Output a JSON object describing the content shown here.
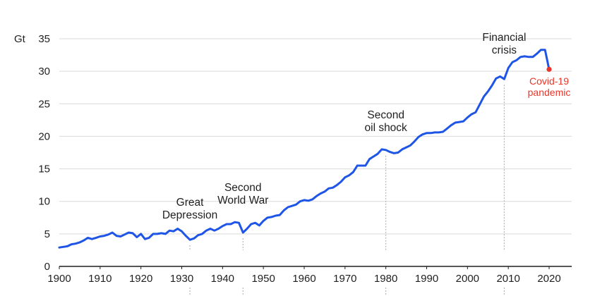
{
  "chart_data": {
    "type": "line",
    "unit": "Gt",
    "xlim": [
      1900,
      2020
    ],
    "ylim": [
      0,
      35
    ],
    "x_ticks": [
      1900,
      1910,
      1920,
      1930,
      1940,
      1950,
      1960,
      1970,
      1980,
      1990,
      2000,
      2010,
      2020
    ],
    "y_ticks": [
      0,
      5,
      10,
      15,
      20,
      25,
      30,
      35
    ],
    "grid": "horizontal",
    "line_color": "#1f55e6",
    "highlight_color": "#e8362a",
    "series": [
      {
        "x": [
          1900,
          1901,
          1902,
          1903,
          1904,
          1905,
          1906,
          1907,
          1908,
          1909,
          1910,
          1911,
          1912,
          1913,
          1914,
          1915,
          1916,
          1917,
          1918,
          1919,
          1920,
          1921,
          1922,
          1923,
          1924,
          1925,
          1926,
          1927,
          1928,
          1929,
          1930,
          1931,
          1932,
          1933,
          1934,
          1935,
          1936,
          1937,
          1938,
          1939,
          1940,
          1941,
          1942,
          1943,
          1944,
          1945,
          1946,
          1947,
          1948,
          1949,
          1950,
          1951,
          1952,
          1953,
          1954,
          1955,
          1956,
          1957,
          1958,
          1959,
          1960,
          1961,
          1962,
          1963,
          1964,
          1965,
          1966,
          1967,
          1968,
          1969,
          1970,
          1971,
          1972,
          1973,
          1974,
          1975,
          1976,
          1977,
          1978,
          1979,
          1980,
          1981,
          1982,
          1983,
          1984,
          1985,
          1986,
          1987,
          1988,
          1989,
          1990,
          1991,
          1992,
          1993,
          1994,
          1995,
          1996,
          1997,
          1998,
          1999,
          2000,
          2001,
          2002,
          2003,
          2004,
          2005,
          2006,
          2007,
          2008,
          2009,
          2010,
          2011,
          2012,
          2013,
          2014,
          2015,
          2016,
          2017,
          2018,
          2019,
          2020
        ],
        "y": [
          2.9,
          3.0,
          3.1,
          3.4,
          3.5,
          3.7,
          4.0,
          4.4,
          4.2,
          4.4,
          4.6,
          4.7,
          4.9,
          5.2,
          4.7,
          4.6,
          4.9,
          5.2,
          5.1,
          4.5,
          5.0,
          4.2,
          4.4,
          5.0,
          5.0,
          5.1,
          5.0,
          5.5,
          5.4,
          5.8,
          5.4,
          4.7,
          4.1,
          4.3,
          4.8,
          5.0,
          5.5,
          5.8,
          5.5,
          5.8,
          6.2,
          6.5,
          6.5,
          6.8,
          6.7,
          5.2,
          5.8,
          6.5,
          6.7,
          6.3,
          7.0,
          7.5,
          7.6,
          7.8,
          7.9,
          8.6,
          9.1,
          9.3,
          9.5,
          10.0,
          10.2,
          10.1,
          10.3,
          10.8,
          11.2,
          11.5,
          12.0,
          12.1,
          12.5,
          13.0,
          13.7,
          14.0,
          14.5,
          15.5,
          15.5,
          15.5,
          16.5,
          16.9,
          17.3,
          18.0,
          17.9,
          17.6,
          17.4,
          17.5,
          18.0,
          18.3,
          18.6,
          19.2,
          19.9,
          20.3,
          20.5,
          20.5,
          20.6,
          20.6,
          20.7,
          21.2,
          21.7,
          22.1,
          22.2,
          22.3,
          22.9,
          23.4,
          23.7,
          24.9,
          26.1,
          26.9,
          27.8,
          28.9,
          29.2,
          28.8,
          30.5,
          31.4,
          31.7,
          32.2,
          32.3,
          32.2,
          32.2,
          32.7,
          33.3,
          33.3,
          30.3
        ]
      }
    ],
    "annotations": [
      {
        "year": 1932,
        "lines": [
          "Great",
          "Depression"
        ]
      },
      {
        "year": 1945,
        "lines": [
          "Second",
          "World War"
        ]
      },
      {
        "year": 1980,
        "lines": [
          "Second",
          "oil shock"
        ]
      },
      {
        "year": 2009,
        "lines": [
          "Financial",
          "crisis"
        ]
      },
      {
        "year": 2020,
        "lines": [
          "Covid-19",
          "pandemic"
        ],
        "highlight": true
      }
    ]
  }
}
